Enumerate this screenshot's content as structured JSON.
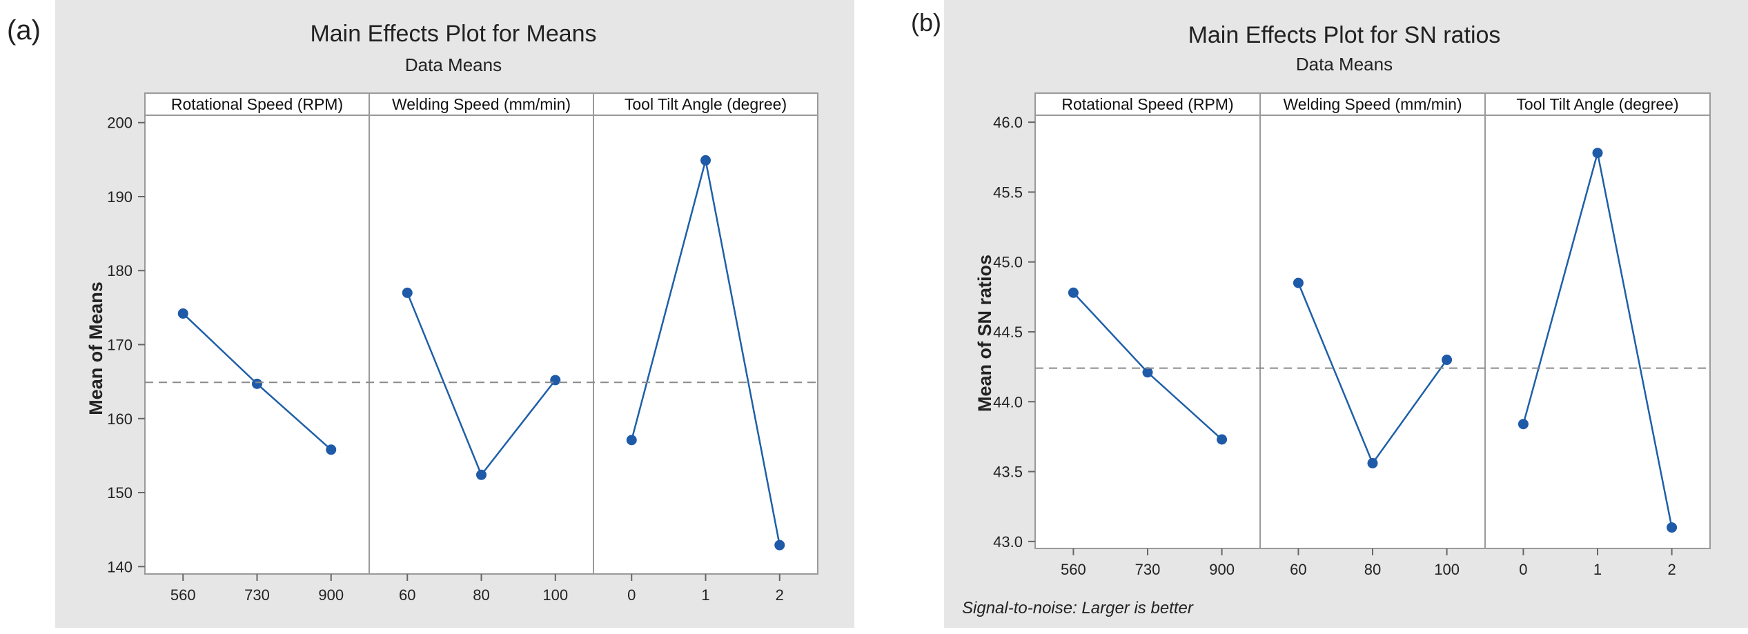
{
  "panels": [
    {
      "label": "(a)",
      "title": "Main Effects Plot for Means",
      "subtitle": "Data Means",
      "ylabel": "Mean of Means",
      "note": "",
      "yticks": [
        "140",
        "150",
        "160",
        "170",
        "180",
        "190",
        "200"
      ]
    },
    {
      "label": "(b)",
      "title": "Main Effects Plot for SN ratios",
      "subtitle": "Data Means",
      "ylabel": "Mean of SN ratios",
      "note": "Signal-to-noise: Larger is better",
      "yticks": [
        "43.0",
        "43.5",
        "44.0",
        "44.5",
        "45.0",
        "45.5",
        "46.0"
      ]
    }
  ],
  "chart_data": [
    {
      "type": "line",
      "title": "Main Effects Plot for Means",
      "subtitle": "Data Means",
      "ylabel": "Mean of Means",
      "ylim": [
        139,
        201
      ],
      "reference_line": 164.9,
      "color": "#1f5fa8",
      "facets": [
        {
          "name": "Rotational Speed (RPM)",
          "categories": [
            "560",
            "730",
            "900"
          ],
          "values": [
            174.2,
            164.7,
            155.8
          ]
        },
        {
          "name": "Welding Speed (mm/min)",
          "categories": [
            "60",
            "80",
            "100"
          ],
          "values": [
            177.0,
            152.4,
            165.2
          ]
        },
        {
          "name": "Tool Tilt Angle (degree)",
          "categories": [
            "0",
            "1",
            "2"
          ],
          "values": [
            157.1,
            194.9,
            142.9
          ]
        }
      ]
    },
    {
      "type": "line",
      "title": "Main Effects Plot for SN ratios",
      "subtitle": "Data Means",
      "ylabel": "Mean of SN ratios",
      "ylim": [
        42.95,
        46.05
      ],
      "reference_line": 44.24,
      "color": "#1f5fa8",
      "facets": [
        {
          "name": "Rotational Speed (RPM)",
          "categories": [
            "560",
            "730",
            "900"
          ],
          "values": [
            44.78,
            44.21,
            43.73
          ]
        },
        {
          "name": "Welding Speed (mm/min)",
          "categories": [
            "60",
            "80",
            "100"
          ],
          "values": [
            44.85,
            43.56,
            44.3
          ]
        },
        {
          "name": "Tool Tilt Angle (degree)",
          "categories": [
            "0",
            "1",
            "2"
          ],
          "values": [
            43.84,
            45.78,
            43.1
          ]
        }
      ]
    }
  ]
}
